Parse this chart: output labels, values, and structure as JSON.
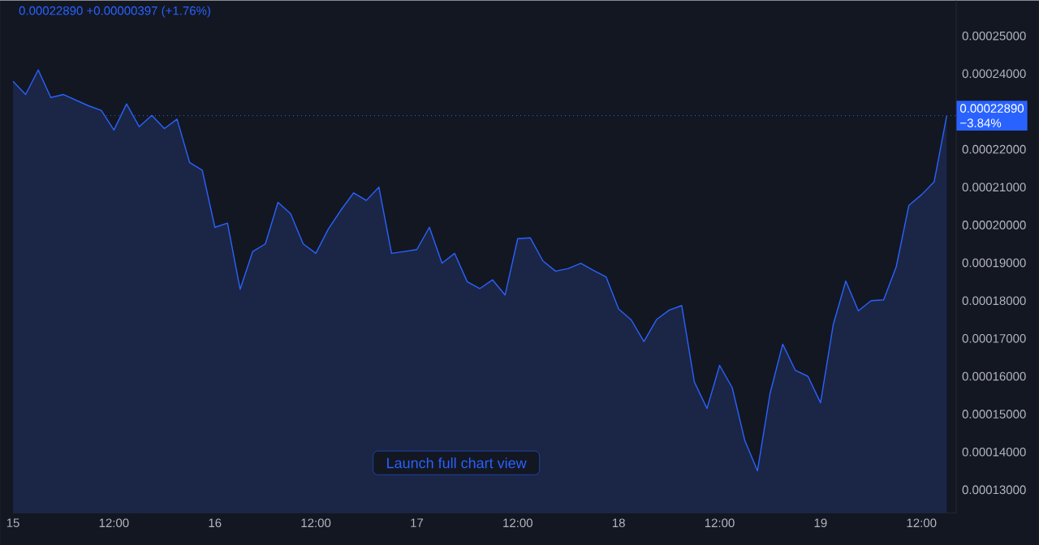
{
  "chart_data": {
    "type": "area",
    "subtitle": "0.00022890  +0.00000397 (+1.76%)",
    "categories": [
      "15",
      null,
      null,
      null,
      null,
      null,
      null,
      null,
      "12:00",
      null,
      null,
      null,
      null,
      null,
      null,
      null,
      "16",
      null,
      null,
      null,
      null,
      null,
      null,
      null,
      "12:00",
      null,
      null,
      null,
      null,
      null,
      null,
      null,
      "17",
      null,
      null,
      null,
      null,
      null,
      null,
      null,
      "12:00",
      null,
      null,
      null,
      null,
      null,
      null,
      null,
      "18",
      null,
      null,
      null,
      null,
      null,
      null,
      null,
      "12:00",
      null,
      null,
      null,
      null,
      null,
      null,
      null,
      "19",
      null,
      null,
      null,
      null,
      null,
      null,
      null,
      "12:00",
      null,
      null
    ],
    "series": [
      {
        "color": "#2962ff",
        "values": [
          0.000238,
          0.0002345,
          0.000241,
          0.0002337,
          0.0002345,
          0.000233,
          0.0002315,
          0.0002303,
          0.0002251,
          0.000232,
          0.000226,
          0.000229,
          0.0002255,
          0.000228,
          0.0002165,
          0.0002145,
          0.0001994,
          0.0002005,
          0.000183,
          0.000193,
          0.000195,
          0.000206,
          0.000203,
          0.000195,
          0.0001925,
          0.000199,
          0.000204,
          0.0002085,
          0.0002065,
          0.00021,
          0.0001925,
          0.000193,
          0.0001935,
          0.0001994,
          0.0001899,
          0.0001925,
          0.000185,
          0.0001832,
          0.0001855,
          0.0001815,
          0.0001964,
          0.0001966,
          0.0001905,
          0.0001878,
          0.0001885,
          0.0001899,
          0.000188,
          0.0001863,
          0.0001778,
          0.0001749,
          0.0001692,
          0.000175,
          0.0001775,
          0.0001787,
          0.0001585,
          0.0001515,
          0.0001629,
          0.000157,
          0.000143,
          0.000135,
          0.0001555,
          0.0001685,
          0.0001616,
          0.00016,
          0.000153,
          0.0001736,
          0.0001852,
          0.0001773,
          0.00018,
          0.0001802,
          0.000189,
          0.0002052,
          0.000208,
          0.0002114,
          0.0002289
        ]
      }
    ],
    "ylim": [
      0.0001239,
      0.0002594
    ],
    "yticks": [
      {
        "value": 0.00013,
        "label": "0.00013000"
      },
      {
        "value": 0.00014,
        "label": "0.00014000"
      },
      {
        "value": 0.00015,
        "label": "0.00015000"
      },
      {
        "value": 0.00016,
        "label": "0.00016000"
      },
      {
        "value": 0.00017,
        "label": "0.00017000"
      },
      {
        "value": 0.00018,
        "label": "0.00018000"
      },
      {
        "value": 0.00019,
        "label": "0.00019000"
      },
      {
        "value": 0.0002,
        "label": "0.00020000"
      },
      {
        "value": 0.00021,
        "label": "0.00021000"
      },
      {
        "value": 0.00022,
        "label": "0.00022000"
      },
      {
        "value": 0.00024,
        "label": "0.00024000"
      },
      {
        "value": 0.00025,
        "label": "0.00025000"
      }
    ],
    "ref_lines": [
      {
        "axis": "y",
        "value": 0.0002289,
        "label": "0.00022890",
        "color": "#2962ff",
        "line_style": "dotted"
      }
    ],
    "annotations": [
      "−3.84%",
      "Launch full chart view"
    ]
  }
}
